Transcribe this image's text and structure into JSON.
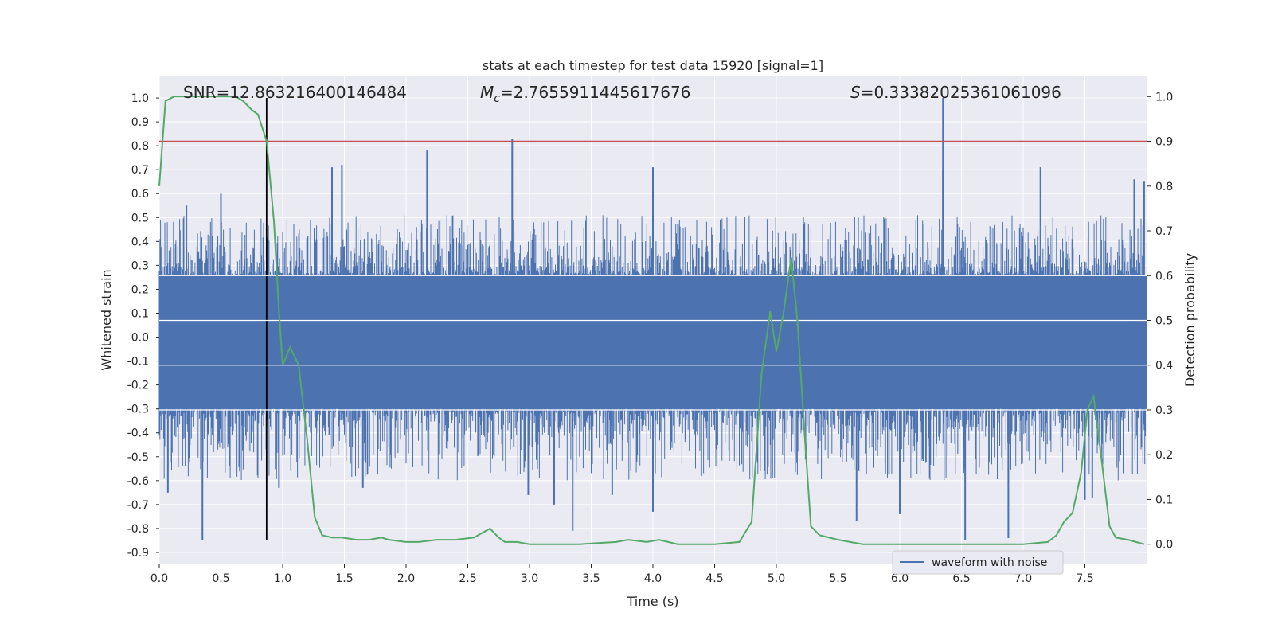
{
  "chart_data": {
    "type": "line",
    "title": "stats at each timestep for test data 15920 [signal=1]",
    "xlabel": "Time (s)",
    "ylabel": "Whitened strain",
    "y2label": "Detection probability",
    "xlim": [
      0.0,
      8.0
    ],
    "ylim": [
      -0.95,
      1.09
    ],
    "y2lim": [
      -0.045,
      1.045
    ],
    "grid": true,
    "legend_placement": "lower-right",
    "x_ticks": [
      0.0,
      0.5,
      1.0,
      1.5,
      2.0,
      2.5,
      3.0,
      3.5,
      4.0,
      4.5,
      5.0,
      5.5,
      6.0,
      6.5,
      7.0,
      7.5
    ],
    "x_tick_labels": [
      "0.0",
      "0.5",
      "1.0",
      "1.5",
      "2.0",
      "2.5",
      "3.0",
      "3.5",
      "4.0",
      "4.5",
      "5.0",
      "5.5",
      "6.0",
      "6.5",
      "7.0",
      "7.5"
    ],
    "y_ticks": [
      1.0,
      0.9,
      0.8,
      0.7,
      0.6,
      0.5,
      0.4,
      0.3,
      0.2,
      0.1,
      0.0,
      -0.1,
      -0.2,
      -0.3,
      -0.4,
      -0.5,
      -0.6,
      -0.7,
      -0.8,
      -0.9
    ],
    "y_tick_labels": [
      "1.0",
      "0.9",
      "0.8",
      "0.7",
      "0.6",
      "0.5",
      "0.4",
      "0.3",
      "0.2",
      "0.1",
      "0.0",
      "-0.1",
      "-0.2",
      "-0.3",
      "-0.4",
      "-0.5",
      "-0.6",
      "-0.7",
      "-0.8",
      "-0.9"
    ],
    "y2_ticks": [
      1.0,
      0.9,
      0.8,
      0.7,
      0.6,
      0.5,
      0.4,
      0.3,
      0.2,
      0.1,
      0.0
    ],
    "y2_tick_labels": [
      "1.0",
      "0.9",
      "0.8",
      "0.7",
      "0.6",
      "0.5",
      "0.4",
      "0.3",
      "0.2",
      "0.1",
      "0.0"
    ],
    "annotations": {
      "snr": "SNR=12.863216400146484",
      "mc_symbol": "M",
      "mc_subscript": "c",
      "mc_value": "=2.7655911445617676",
      "s_symbol": "S",
      "s_value": "=0.33382025361061096"
    },
    "legend": [
      {
        "label": "waveform with noise",
        "color": "#4c72b0"
      }
    ],
    "threshold_line": {
      "y2": 0.9,
      "color": "#c44e52"
    },
    "marker_line": {
      "x": 0.87,
      "y_from": -0.85,
      "y_to": 1.0,
      "color": "#000000"
    },
    "waveform": {
      "name": "waveform with noise",
      "color": "#4c72b0",
      "typical_envelope": [
        -0.3,
        0.26
      ],
      "peaks": [
        {
          "x": 0.35,
          "y": -0.85
        },
        {
          "x": 0.07,
          "y": -0.65
        },
        {
          "x": 0.22,
          "y": 0.55
        },
        {
          "x": 0.5,
          "y": 0.6
        },
        {
          "x": 0.97,
          "y": -0.63
        },
        {
          "x": 1.4,
          "y": 0.71
        },
        {
          "x": 1.48,
          "y": 0.72
        },
        {
          "x": 1.65,
          "y": -0.63
        },
        {
          "x": 2.17,
          "y": 0.78
        },
        {
          "x": 2.86,
          "y": 0.83
        },
        {
          "x": 2.99,
          "y": -0.66
        },
        {
          "x": 3.2,
          "y": -0.7
        },
        {
          "x": 3.35,
          "y": -0.81
        },
        {
          "x": 3.67,
          "y": -0.66
        },
        {
          "x": 4.0,
          "y": 0.71
        },
        {
          "x": 4.0,
          "y": -0.73
        },
        {
          "x": 5.65,
          "y": -0.77
        },
        {
          "x": 6.0,
          "y": -0.74
        },
        {
          "x": 6.35,
          "y": 1.0
        },
        {
          "x": 6.35,
          "y": 0.7
        },
        {
          "x": 6.53,
          "y": -0.85
        },
        {
          "x": 6.88,
          "y": -0.84
        },
        {
          "x": 7.14,
          "y": 0.71
        },
        {
          "x": 7.5,
          "y": -0.68
        },
        {
          "x": 7.56,
          "y": -0.67
        },
        {
          "x": 7.9,
          "y": 0.66
        },
        {
          "x": 7.98,
          "y": 0.65
        }
      ]
    },
    "probability": {
      "axis": "right",
      "color": "#55a868",
      "x": [
        0.0,
        0.05,
        0.12,
        0.25,
        0.4,
        0.55,
        0.62,
        0.68,
        0.75,
        0.8,
        0.87,
        0.93,
        0.97,
        1.0,
        1.06,
        1.13,
        1.2,
        1.26,
        1.32,
        1.4,
        1.48,
        1.6,
        1.7,
        1.8,
        1.86,
        2.0,
        2.1,
        2.25,
        2.4,
        2.55,
        2.68,
        2.75,
        2.8,
        2.9,
        3.0,
        3.2,
        3.4,
        3.7,
        3.8,
        3.95,
        4.05,
        4.2,
        4.5,
        4.7,
        4.8,
        4.88,
        4.95,
        5.0,
        5.06,
        5.12,
        5.17,
        5.23,
        5.28,
        5.35,
        5.5,
        5.7,
        6.0,
        6.3,
        6.5,
        6.8,
        7.0,
        7.2,
        7.27,
        7.33,
        7.4,
        7.47,
        7.52,
        7.57,
        7.63,
        7.7,
        7.75,
        7.85,
        7.98
      ],
      "y": [
        0.8,
        0.99,
        1.0,
        1.0,
        1.0,
        1.0,
        1.0,
        0.99,
        0.97,
        0.96,
        0.9,
        0.72,
        0.52,
        0.4,
        0.44,
        0.4,
        0.23,
        0.06,
        0.02,
        0.015,
        0.015,
        0.01,
        0.01,
        0.015,
        0.01,
        0.005,
        0.005,
        0.01,
        0.01,
        0.015,
        0.035,
        0.015,
        0.005,
        0.005,
        0.0,
        0.0,
        0.0,
        0.005,
        0.01,
        0.005,
        0.01,
        0.0,
        0.0,
        0.005,
        0.05,
        0.38,
        0.52,
        0.43,
        0.52,
        0.64,
        0.5,
        0.24,
        0.04,
        0.02,
        0.01,
        0.0,
        0.0,
        0.0,
        0.0,
        0.0,
        0.0,
        0.005,
        0.02,
        0.05,
        0.07,
        0.16,
        0.3,
        0.33,
        0.2,
        0.04,
        0.015,
        0.01,
        0.0
      ]
    }
  }
}
